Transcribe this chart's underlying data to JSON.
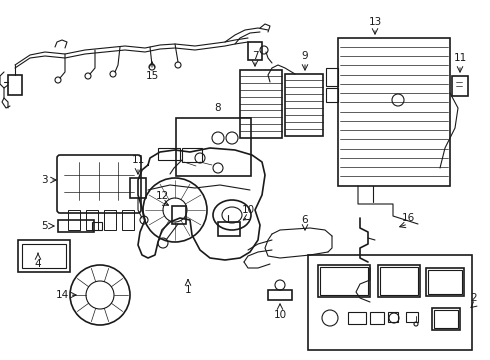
{
  "bg_color": "#ffffff",
  "line_color": "#1a1a1a",
  "label_color": "#111111",
  "figsize": [
    4.9,
    3.6
  ],
  "dpi": 100,
  "xlim": [
    0,
    490
  ],
  "ylim": [
    0,
    360
  ]
}
